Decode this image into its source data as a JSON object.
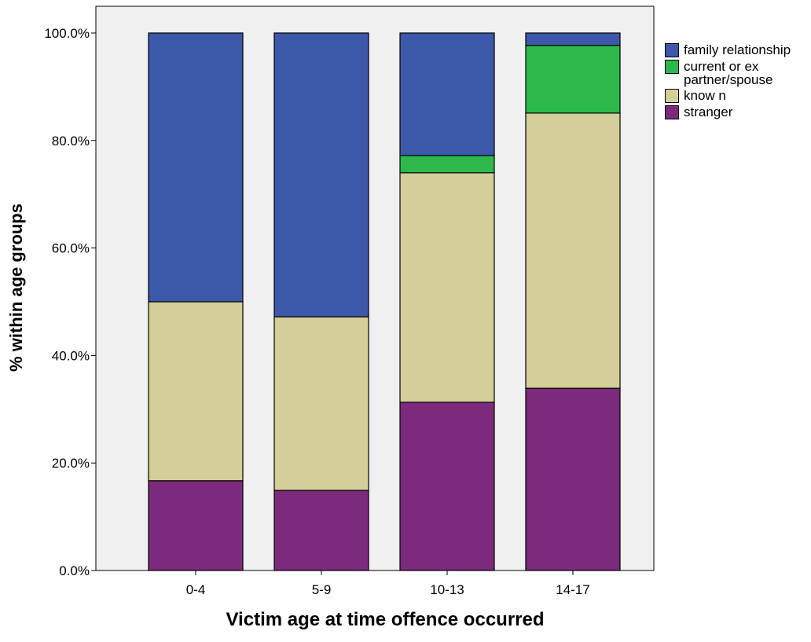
{
  "chart_data": {
    "type": "stacked-bar",
    "x_label": "Victim age at time offence occurred",
    "y_label": "% within age groups",
    "categories": [
      "0-4",
      "5-9",
      "10-13",
      "14-17"
    ],
    "series": [
      {
        "name": "stranger",
        "color": "#7b2a7c",
        "values": [
          16.7,
          14.9,
          31.3,
          33.9
        ]
      },
      {
        "name": "know n",
        "color": "#d4ce99",
        "values": [
          33.3,
          32.3,
          42.7,
          51.2
        ]
      },
      {
        "name": "current or ex partner/spouse",
        "color": "#2db84b",
        "values": [
          0,
          0,
          3.2,
          12.6
        ]
      },
      {
        "name": "family relationship",
        "color": "#3d58aa",
        "values": [
          50.0,
          52.8,
          22.8,
          2.3
        ]
      }
    ],
    "ylim": [
      0,
      100
    ],
    "yticks": [
      {
        "value": 0,
        "label": "0.0%"
      },
      {
        "value": 20,
        "label": "20.0%"
      },
      {
        "value": 40,
        "label": "40.0%"
      },
      {
        "value": 60,
        "label": "60.0%"
      },
      {
        "value": 80,
        "label": "80.0%"
      },
      {
        "value": 100,
        "label": "100.0%"
      }
    ],
    "legend": "right"
  }
}
